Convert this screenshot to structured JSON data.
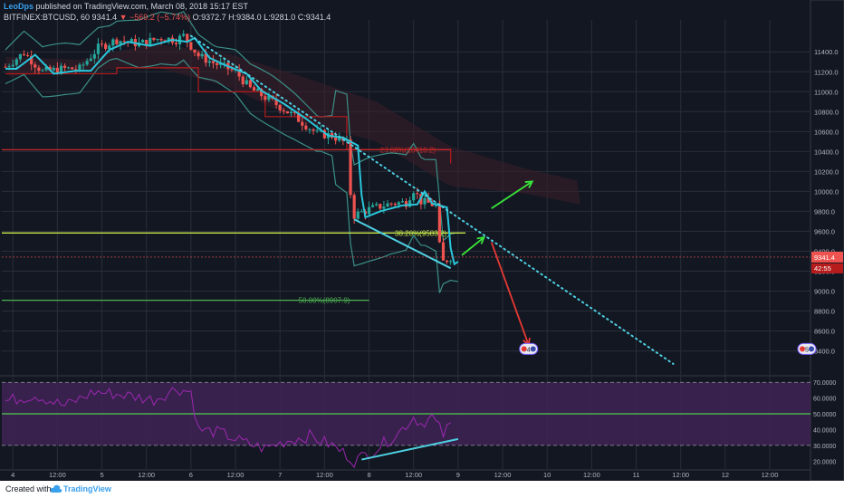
{
  "header": {
    "author": "LeoDps",
    "published": "published on TradingView.com, March 08, 2018 15:17 EST",
    "symbol": "BITFINEX:BTCUSD, 60",
    "last": "9341.4",
    "change_arrow": "▼",
    "change": "−569.2 (−5.74%)",
    "ohlc": "O:9372.7 H:9384.0 L:9281.0 C:9341.4"
  },
  "footer": {
    "created_with": "Created with",
    "brand": "TradingView"
  },
  "colors": {
    "background": "#131722",
    "grid": "#2a2e39",
    "candle_up": "#26a69a",
    "candle_down": "#ef5350",
    "tenkan": "#29c6da",
    "bollinger": "#3b8f87",
    "kijun": "#b71c1c",
    "fib_23": "#c62828",
    "fib_38": "#c6e84a",
    "fib_50": "#4caf50",
    "trendline": "#4dd0e1",
    "arrow_up": "#39e639",
    "arrow_down": "#e53935",
    "rsi": "#9c27b0",
    "rsi_band": "#3d2352"
  },
  "chart_data": {
    "type": "candlestick",
    "price_axis": {
      "ylim": [
        8160,
        11720
      ],
      "ticks": [
        "11400.0",
        "11200.0",
        "11000.0",
        "10800.0",
        "10600.0",
        "10400.0",
        "10200.0",
        "10000.0",
        "9800.0",
        "9600.0",
        "9400.0",
        "9200.0",
        "9000.0",
        "8800.0",
        "8600.0",
        "8400.0"
      ],
      "last_price_label": "9341.4",
      "countdown_label": "42:55"
    },
    "time_axis": {
      "xlim": [
        0,
        216
      ],
      "ticks": [
        {
          "x": 2,
          "label": "4"
        },
        {
          "x": 14,
          "label": "12:00"
        },
        {
          "x": 26,
          "label": "5"
        },
        {
          "x": 38,
          "label": "12:00"
        },
        {
          "x": 50,
          "label": "6"
        },
        {
          "x": 62,
          "label": "12:00"
        },
        {
          "x": 74,
          "label": "7"
        },
        {
          "x": 86,
          "label": "12:00"
        },
        {
          "x": 98,
          "label": "8"
        },
        {
          "x": 110,
          "label": "12:00"
        },
        {
          "x": 122,
          "label": "9"
        },
        {
          "x": 134,
          "label": "12:00"
        },
        {
          "x": 146,
          "label": "10"
        },
        {
          "x": 158,
          "label": "12:00"
        },
        {
          "x": 170,
          "label": "11"
        },
        {
          "x": 182,
          "label": "12:00"
        },
        {
          "x": 194,
          "label": "12"
        },
        {
          "x": 206,
          "label": "12:00"
        }
      ]
    },
    "candle_anchors": [
      [
        0,
        11250
      ],
      [
        5,
        11390
      ],
      [
        10,
        11200
      ],
      [
        16,
        11230
      ],
      [
        20,
        11230
      ],
      [
        25,
        11440
      ],
      [
        30,
        11520
      ],
      [
        36,
        11480
      ],
      [
        42,
        11540
      ],
      [
        46,
        11520
      ],
      [
        48,
        11560
      ],
      [
        52,
        11360
      ],
      [
        56,
        11290
      ],
      [
        62,
        11200
      ],
      [
        66,
        11030
      ],
      [
        72,
        10900
      ],
      [
        78,
        10750
      ],
      [
        84,
        10580
      ],
      [
        88,
        10560
      ],
      [
        92,
        10480
      ],
      [
        93,
        9980
      ],
      [
        94,
        9760
      ],
      [
        98,
        9820
      ],
      [
        104,
        9880
      ],
      [
        108,
        9890
      ],
      [
        110,
        10020
      ],
      [
        112,
        9900
      ],
      [
        116,
        9860
      ],
      [
        117,
        9450
      ],
      [
        118,
        9290
      ],
      [
        120,
        9341
      ]
    ],
    "fib_levels": [
      {
        "label": "23.60%(10418.2)",
        "value": 10418.2
      },
      {
        "label": "38.20%(9583.2)",
        "value": 9583.2
      },
      {
        "label": "50.00%(8907.9)",
        "value": 8907.9
      }
    ],
    "trendline": [
      [
        50,
        11560
      ],
      [
        180,
        8270
      ]
    ],
    "arrows": [
      {
        "color": "up",
        "from": [
          123,
          9360
        ],
        "to": [
          129,
          9540
        ]
      },
      {
        "color": "up",
        "from": [
          131,
          9830
        ],
        "to": [
          142,
          10100
        ]
      },
      {
        "color": "down",
        "from": [
          131,
          9490
        ],
        "to": [
          141,
          8460
        ]
      }
    ],
    "events": [
      {
        "x": 141,
        "value": 8420,
        "label": "4"
      },
      {
        "x": 216,
        "value": 8420,
        "label": "5"
      }
    ],
    "rsi": {
      "ylim": [
        15,
        73
      ],
      "ticks": [
        "70.0000",
        "60.0000",
        "50.0000",
        "40.0000",
        "30.0000",
        "20.0000"
      ],
      "levels": [
        70,
        50,
        30
      ],
      "anchors": [
        [
          0,
          58
        ],
        [
          8,
          62
        ],
        [
          16,
          55
        ],
        [
          24,
          64
        ],
        [
          32,
          62
        ],
        [
          40,
          59
        ],
        [
          46,
          66
        ],
        [
          50,
          64
        ],
        [
          52,
          40
        ],
        [
          58,
          38
        ],
        [
          64,
          32
        ],
        [
          70,
          28
        ],
        [
          76,
          33
        ],
        [
          82,
          36
        ],
        [
          88,
          30
        ],
        [
          92,
          24
        ],
        [
          94,
          20
        ],
        [
          100,
          28
        ],
        [
          106,
          38
        ],
        [
          110,
          48
        ],
        [
          112,
          44
        ],
        [
          115,
          48
        ],
        [
          118,
          37
        ],
        [
          120,
          43
        ]
      ],
      "divergence": [
        [
          96,
          21
        ],
        [
          122,
          34
        ]
      ]
    }
  }
}
